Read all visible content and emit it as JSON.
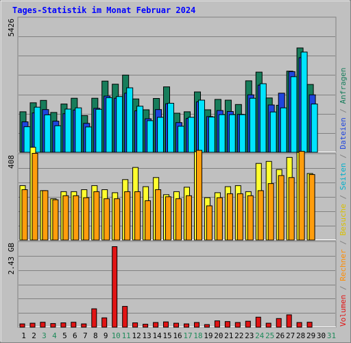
{
  "title": "Tages-Statistik im Monat Februar 2024",
  "colors": {
    "background": "#c0c0c0",
    "frame_dark": "#808080",
    "frame_light": "#ffffff",
    "title": "#0000ff",
    "grid": "#808080",
    "anfragen": "#177d5b",
    "dateien": "#1f45de",
    "seiten": "#00e4ff",
    "besuche": "#ffff2f",
    "rechner": "#ff9d0c",
    "volumen": "#e11414",
    "day_weekday": "#000000",
    "day_weekend": "#1e8a5a"
  },
  "right_axis_label": {
    "top": [
      {
        "text": "Anfragen",
        "color": "#177d5b"
      },
      {
        "text": " / ",
        "color": "#808080"
      },
      {
        "text": "Dateien",
        "color": "#1f45de"
      },
      {
        "text": " / ",
        "color": "#808080"
      },
      {
        "text": "Seiten",
        "color": "#00b0cc"
      },
      {
        "text": " / ",
        "color": "#808080"
      },
      {
        "text": "Besuche",
        "color": "#d8c000"
      },
      {
        "text": " / ",
        "color": "#808080"
      },
      {
        "text": "Rechner",
        "color": "#ff8c00"
      },
      {
        "text": " / ",
        "color": "#808080"
      },
      {
        "text": "Volumen",
        "color": "#e11414"
      }
    ]
  },
  "chart_data": {
    "type": "bar",
    "categories": [
      "1",
      "2",
      "3",
      "4",
      "5",
      "6",
      "7",
      "8",
      "9",
      "10",
      "11",
      "12",
      "13",
      "14",
      "15",
      "16",
      "17",
      "18",
      "19",
      "20",
      "21",
      "22",
      "23",
      "24",
      "25",
      "26",
      "27",
      "28",
      "29",
      "30",
      "31"
    ],
    "weekend_days": [
      "3",
      "4",
      "10",
      "11",
      "17",
      "18",
      "24",
      "25",
      "31"
    ],
    "panels": [
      {
        "name": "requests",
        "ymax": 5426,
        "tick_label": "5426",
        "series": [
          {
            "name": "Anfragen",
            "color": "#177d5b",
            "values": [
              1680,
              2050,
              2150,
              1650,
              2000,
              2240,
              1520,
              2240,
              2950,
              2820,
              3200,
              2210,
              1760,
              2230,
              2710,
              1620,
              1680,
              2500,
              1760,
              2190,
              2160,
              1980,
              2960,
              3320,
              2250,
              1950,
              3360,
              4320,
              2810,
              0,
              0
            ]
          },
          {
            "name": "Dateien",
            "color": "#1f45de",
            "values": [
              1260,
              1630,
              1770,
              1290,
              1600,
              1750,
              1200,
              1820,
              2330,
              2240,
              2450,
              1720,
              1390,
              1770,
              2010,
              1230,
              1400,
              2090,
              1480,
              1730,
              1690,
              1570,
              2380,
              2780,
              1960,
              2450,
              3340,
              3920,
              2380,
              0,
              0
            ]
          },
          {
            "name": "Seiten",
            "color": "#00e4ff",
            "values": [
              1060,
              1870,
              1550,
              1100,
              1790,
              1840,
              1050,
              1780,
              2260,
              2310,
              2670,
              1910,
              1310,
              1450,
              2030,
              1080,
              1450,
              2160,
              1460,
              1560,
              1560,
              1560,
              2240,
              2840,
              1670,
              1840,
              3130,
              4150,
              2000,
              0,
              0
            ]
          }
        ]
      },
      {
        "name": "visits",
        "ymax": 408,
        "tick_label": "408",
        "series": [
          {
            "name": "Besuche",
            "color": "#ffff2f",
            "values": [
              270,
              460,
              245,
              205,
              240,
              240,
              250,
              270,
              250,
              235,
              300,
              360,
              265,
              310,
              225,
              240,
              262,
              438,
              210,
              235,
              265,
              270,
              240,
              380,
              390,
              350,
              410,
              435,
              330,
              0,
              0
            ]
          },
          {
            "name": "Rechner",
            "color": "#ff9d0c",
            "values": [
              250,
              430,
              245,
              200,
              220,
              220,
              210,
              240,
              205,
              205,
              240,
              240,
              195,
              250,
              215,
              205,
              220,
              445,
              170,
              210,
              230,
              230,
              220,
              245,
              280,
              320,
              310,
              440,
              325,
              0,
              0
            ]
          }
        ]
      },
      {
        "name": "volume",
        "ymax": 2.43,
        "tick_label": "2.43 GB",
        "series": [
          {
            "name": "Volumen",
            "color": "#e11414",
            "values": [
              0.1,
              0.12,
              0.15,
              0.11,
              0.13,
              0.15,
              0.1,
              0.55,
              0.28,
              2.4,
              0.62,
              0.13,
              0.09,
              0.14,
              0.16,
              0.12,
              0.1,
              0.14,
              0.08,
              0.19,
              0.17,
              0.14,
              0.18,
              0.3,
              0.12,
              0.26,
              0.37,
              0.14,
              0.15,
              0,
              0
            ]
          }
        ]
      }
    ]
  }
}
